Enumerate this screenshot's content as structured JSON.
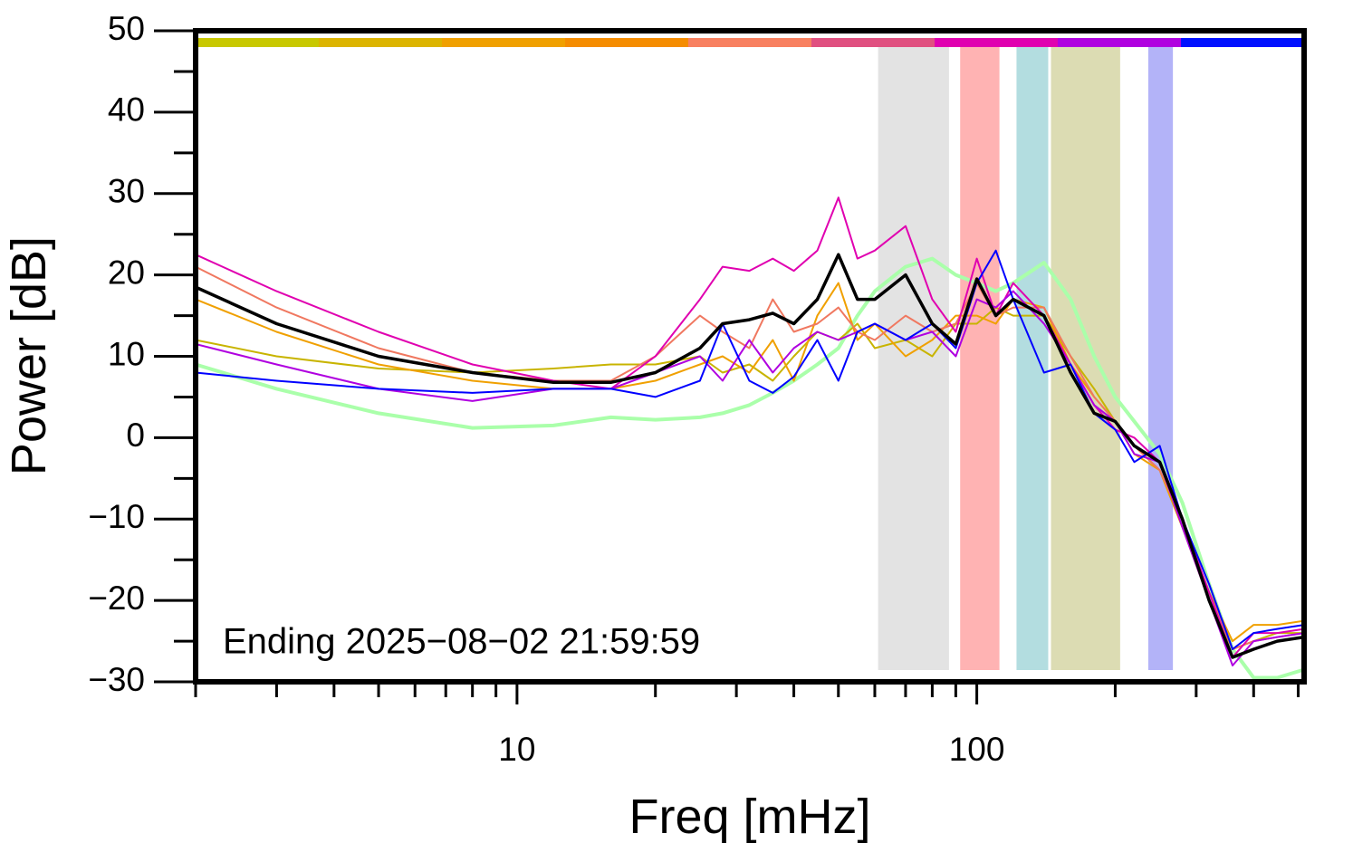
{
  "chart_data": {
    "type": "line",
    "xlabel": "Freq [mHz]",
    "ylabel": "Power [dB]",
    "annotation": "Ending 2025−08−02 21:59:59",
    "xscale": "log",
    "grid": false,
    "xlim": [
      2,
      515
    ],
    "ylim": [
      -30,
      50
    ],
    "xticks": [
      10,
      100
    ],
    "xminor_ticks": [
      2,
      3,
      4,
      5,
      6,
      7,
      8,
      9,
      20,
      30,
      40,
      50,
      60,
      70,
      80,
      90,
      200,
      300,
      400,
      500
    ],
    "yticks": [
      {
        "value": -30,
        "label": "−30"
      },
      {
        "value": -20,
        "label": "−20"
      },
      {
        "value": -10,
        "label": "−10"
      },
      0,
      10,
      20,
      30,
      40,
      50
    ],
    "yminor_ticks": [
      -25,
      -15,
      -5,
      5,
      15,
      25,
      35,
      45
    ],
    "bands": [
      {
        "xlim": [
          61,
          87
        ],
        "color": "#e3e3e3"
      },
      {
        "xlim": [
          92,
          112
        ],
        "color": "#ffb3b3"
      },
      {
        "xlim": [
          122,
          143
        ],
        "color": "#b3dde0"
      },
      {
        "xlim": [
          145,
          205
        ],
        "color": "#dcdcb3"
      },
      {
        "xlim": [
          236,
          267
        ],
        "color": "#b3b3f8"
      }
    ],
    "top_bar_colors": [
      "#c8c800",
      "#dcb400",
      "#f0a000",
      "#f58c00",
      "#f88060",
      "#e05080",
      "#e000b0",
      "#b000e0",
      "#0010ff"
    ],
    "x": [
      2,
      3,
      5,
      8,
      12,
      16,
      20,
      25,
      28,
      32,
      36,
      40,
      45,
      50,
      55,
      60,
      70,
      80,
      90,
      100,
      110,
      120,
      140,
      160,
      180,
      200,
      220,
      250,
      280,
      320,
      360,
      400,
      450,
      515
    ],
    "series": [
      {
        "color": "#aaffaa",
        "width": 4,
        "values": [
          9,
          6,
          3,
          1.2,
          1.5,
          2.5,
          2.2,
          2.5,
          3,
          4,
          5.5,
          7,
          9,
          11,
          15,
          18,
          21,
          22,
          20,
          19,
          18,
          19,
          21.5,
          17,
          10,
          5,
          2,
          -2,
          -8,
          -18,
          -26,
          -29.5,
          -29.5,
          -28.5
        ]
      },
      {
        "color": "#c8b400",
        "width": 2,
        "values": [
          12,
          10,
          8.5,
          8,
          8.5,
          9,
          9,
          10,
          8,
          9,
          7,
          10,
          13,
          12,
          14,
          11,
          12,
          10,
          14,
          14,
          16,
          15,
          15,
          10,
          6,
          2,
          -1,
          -4,
          -11,
          -20,
          -26,
          -25,
          -24,
          -24
        ]
      },
      {
        "color": "#f0a000",
        "width": 2,
        "values": [
          17,
          13,
          9,
          7,
          6,
          6,
          7,
          9,
          10,
          8,
          12,
          7,
          15,
          19,
          12,
          14,
          10,
          12,
          15,
          15,
          14,
          17,
          16,
          9,
          5,
          2,
          -2,
          -4,
          -11,
          -19,
          -25,
          -23,
          -23,
          -22.5
        ]
      },
      {
        "color": "#f07860",
        "width": 2,
        "values": [
          21,
          16,
          11,
          8,
          7,
          7,
          10,
          15,
          13,
          11,
          17,
          13,
          14,
          16,
          13,
          12,
          15,
          13,
          14,
          19,
          15,
          16,
          16,
          10,
          5,
          2,
          -1,
          -4,
          -10,
          -19,
          -26,
          -25,
          -24.5,
          -24
        ]
      },
      {
        "color": "#e000b0",
        "width": 2,
        "values": [
          22.5,
          18,
          13,
          9,
          7,
          6,
          10,
          17,
          21,
          20.5,
          22,
          20.5,
          23,
          29.5,
          22,
          23,
          26,
          17,
          13,
          22,
          15,
          19,
          15,
          9,
          4,
          1,
          0,
          -3,
          -10,
          -19,
          -27,
          -24,
          -24,
          -23.5
        ]
      },
      {
        "color": "#b000e0",
        "width": 2,
        "values": [
          11.5,
          9,
          6,
          4.5,
          6,
          6,
          8,
          10,
          7,
          12,
          8,
          11,
          13,
          12,
          13,
          14,
          12,
          13,
          10,
          17,
          16,
          18,
          14,
          9,
          4,
          2,
          -2,
          -3,
          -11,
          -20,
          -28,
          -25,
          -24.5,
          -24
        ]
      },
      {
        "color": "#0000ff",
        "width": 2,
        "values": [
          8,
          7,
          6,
          5.5,
          6,
          6,
          5,
          7,
          14,
          7,
          5.5,
          7.5,
          12,
          7,
          13,
          14,
          12,
          14,
          11,
          19,
          23,
          17,
          8,
          9,
          3,
          1,
          -3,
          -1,
          -10,
          -18,
          -26,
          -24,
          -23.5,
          -23
        ]
      },
      {
        "color": "#000000",
        "width": 3.5,
        "values": [
          18.5,
          14,
          10,
          8,
          6.8,
          6.8,
          8,
          11,
          14,
          14.5,
          15.3,
          14,
          17,
          22.5,
          17,
          17,
          20,
          14,
          11.5,
          19.5,
          15,
          17,
          15,
          8,
          3,
          2,
          -1,
          -3,
          -10,
          -20,
          -27,
          -26,
          -25,
          -24.5
        ]
      }
    ]
  }
}
